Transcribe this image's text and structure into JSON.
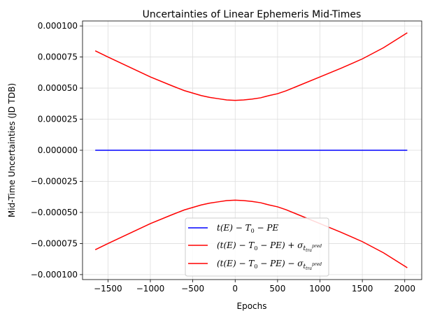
{
  "chart_data": {
    "type": "line",
    "title": "Uncertainties of Linear Ephemeris Mid-Times",
    "xlabel": "Epochs",
    "ylabel": "Mid-Time Uncertainties (JD TDB)",
    "xlim": [
      -1800,
      2200
    ],
    "ylim": [
      -0.000104,
      0.000104
    ],
    "x_ticks": [
      -1500,
      -1000,
      -500,
      0,
      500,
      1000,
      1500,
      2000
    ],
    "x_tick_labels": [
      "−1500",
      "−1000",
      "−500",
      "0",
      "500",
      "1000",
      "1500",
      "2000"
    ],
    "y_ticks": [
      0.0001,
      7.5e-05,
      5e-05,
      2.5e-05,
      0.0,
      -2.5e-05,
      -5e-05,
      -7.5e-05,
      -0.0001
    ],
    "y_tick_labels": [
      "0.000100",
      "0.000075",
      "0.000050",
      "0.000025",
      "0.000000",
      "−0.000025",
      "−0.000050",
      "−0.000075",
      "−0.000100"
    ],
    "grid": true,
    "legend_position": "bottom-center",
    "x": [
      -1650,
      -1500,
      -1250,
      -1000,
      -750,
      -600,
      -400,
      -300,
      -200,
      -100,
      0,
      100,
      200,
      300,
      400,
      500,
      600,
      750,
      1000,
      1250,
      1500,
      1750,
      2030
    ],
    "series": [
      {
        "name": "t(E) − T0 − PE",
        "color": "#0000ff",
        "values": [
          0,
          0,
          0,
          0,
          0,
          0,
          0,
          0,
          0,
          0,
          0,
          0,
          0,
          0,
          0,
          0,
          0,
          0,
          0,
          0,
          0,
          0,
          0
        ]
      },
      {
        "name": "(t(E) − T0 − PE) + σ t_tra^pred",
        "color": "#ff0000",
        "values": [
          8e-05,
          7.5e-05,
          6.7e-05,
          5.9e-05,
          5.2e-05,
          4.8e-05,
          4.4e-05,
          4.25e-05,
          4.15e-05,
          4.05e-05,
          4.01e-05,
          4.05e-05,
          4.12e-05,
          4.22e-05,
          4.4e-05,
          4.55e-05,
          4.78e-05,
          5.2e-05,
          5.9e-05,
          6.6e-05,
          7.35e-05,
          8.25e-05,
          9.45e-05
        ]
      },
      {
        "name": "(t(E) − T0 − PE) − σ t_tra^pred",
        "color": "#ff0000",
        "values": [
          -8e-05,
          -7.5e-05,
          -6.7e-05,
          -5.9e-05,
          -5.2e-05,
          -4.8e-05,
          -4.4e-05,
          -4.25e-05,
          -4.15e-05,
          -4.05e-05,
          -4.01e-05,
          -4.05e-05,
          -4.12e-05,
          -4.22e-05,
          -4.4e-05,
          -4.55e-05,
          -4.78e-05,
          -5.2e-05,
          -5.9e-05,
          -6.6e-05,
          -7.35e-05,
          -8.25e-05,
          -9.45e-05
        ]
      }
    ],
    "legend": [
      {
        "parts": [
          "t(E) − T",
          "0",
          " − PE"
        ]
      },
      {
        "parts": [
          "(t(E) − T",
          "0",
          " − PE) + σ",
          "t",
          "tra",
          "pred"
        ]
      },
      {
        "parts": [
          "(t(E) − T",
          "0",
          " − PE) − σ",
          "t",
          "tra",
          "pred"
        ]
      }
    ]
  }
}
